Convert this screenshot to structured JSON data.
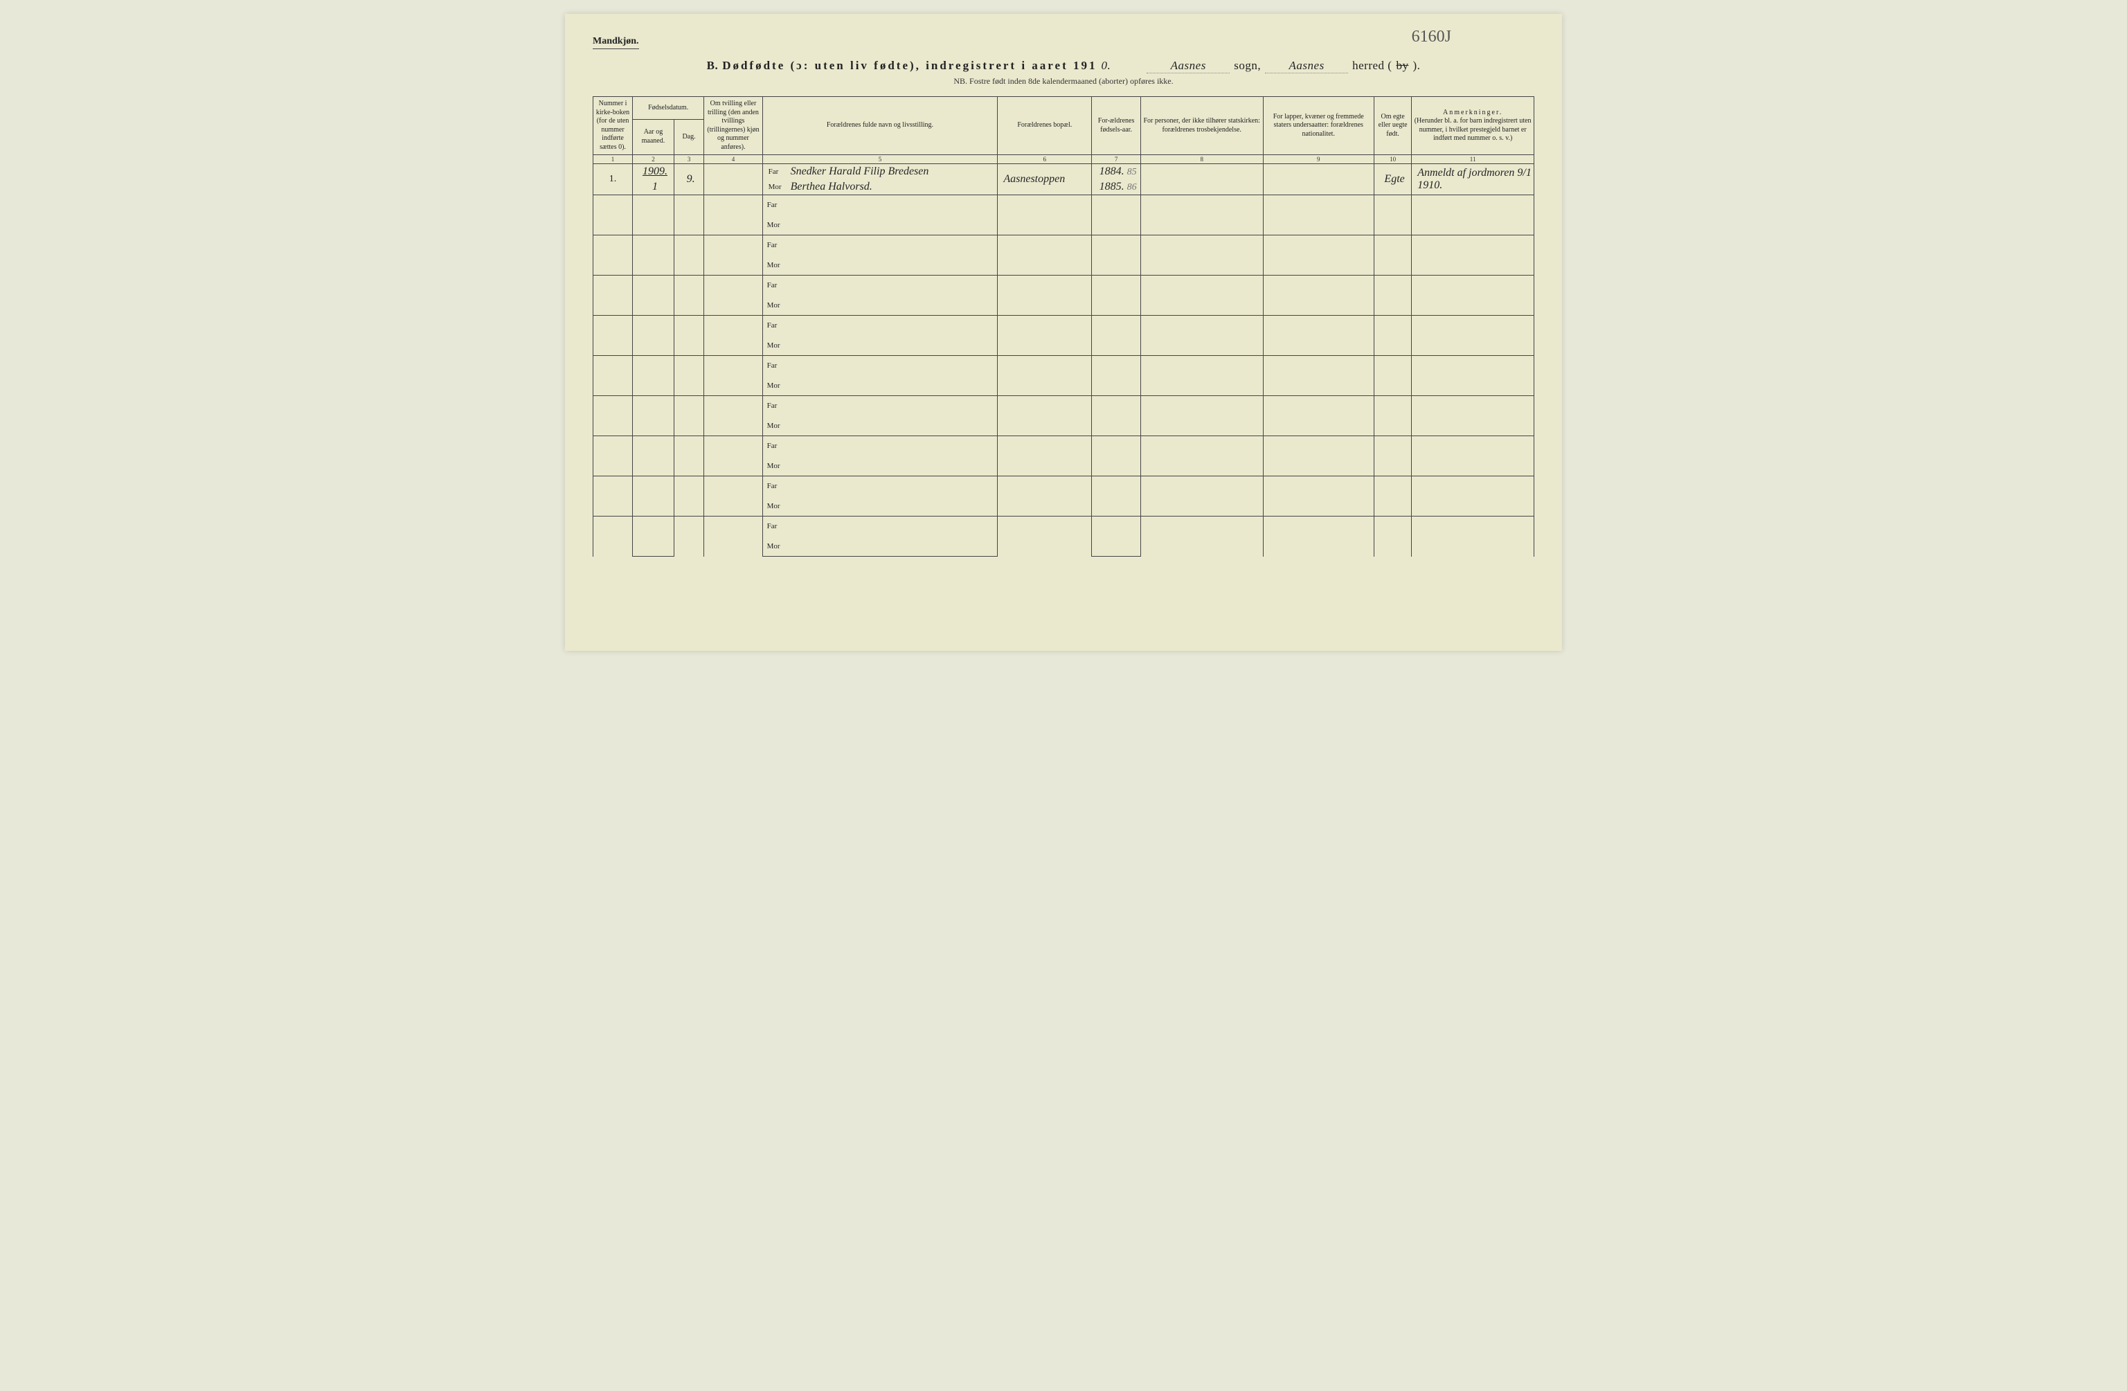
{
  "page": {
    "background_color": "#eae9ce",
    "border_color": "#444444",
    "text_color": "#222222",
    "handwriting_color": "#252525",
    "pencil_color": "#777777"
  },
  "corner_label": "Mandkjøn.",
  "pencil_archive_code": "6160J",
  "title": {
    "prefix": "B.",
    "main": "Dødfødte (ɔ: uten liv fødte), indregistrert i aaret 191",
    "year_suffix_handwritten": "0.",
    "sogn_handwritten": "Aasnes",
    "label_sogn": "sogn,",
    "herred_handwritten": "Aasnes",
    "label_herred_pre": "herred (",
    "label_herred_strike": "by",
    "label_herred_post": ")."
  },
  "sub_note": "NB. Fostre født inden 8de kalendermaaned (aborter) opføres ikke.",
  "columns": {
    "c1": "Nummer i kirke-boken (for de uten nummer indførte sættes 0).",
    "c2_group": "Fødselsdatum.",
    "c2a": "Aar og maaned.",
    "c2b": "Dag.",
    "c4": "Om tvilling eller trilling (den anden tvillings (trillingernes) kjøn og nummer anføres).",
    "c5": "Forældrenes fulde navn og livsstilling.",
    "c6": "Forældrenes bopæl.",
    "c7": "For-ældrenes fødsels-aar.",
    "c8": "For personer, der ikke tilhører statskirken: forældrenes trosbekjendelse.",
    "c9": "For lapper, kvæner og fremmede staters undersaatter: forældrenes nationalitet.",
    "c10": "Om egte eller uegte født.",
    "c11_head": "Anmerkninger.",
    "c11_sub": "(Herunder bl. a. for barn indregistrert uten nummer, i hvilket prestegjeld barnet er indført med nummer o. s. v.)"
  },
  "column_numbers": [
    "1",
    "2",
    "3",
    "4",
    "5",
    "6",
    "7",
    "8",
    "9",
    "10",
    "11"
  ],
  "role_labels": {
    "far": "Far",
    "mor": "Mor"
  },
  "rows": [
    {
      "num": "1.",
      "year_month": "1909.",
      "month_line2": "1",
      "day": "9.",
      "twin": "",
      "far_name": "Snedker Harald Filip Bredesen",
      "mor_name": "Berthea Halvorsd.",
      "residence": "Aasnestoppen",
      "far_birth": "1884.",
      "far_birth_pencil": "85",
      "mor_birth": "1885.",
      "mor_birth_pencil": "86",
      "faith": "",
      "nationality": "",
      "legitimacy": "Egte",
      "remarks": "Anmeldt af jordmoren 9/1 1910."
    }
  ],
  "empty_row_count": 9,
  "column_widths_pct": [
    4.2,
    4.4,
    3.2,
    6.2,
    25.0,
    10.0,
    5.2,
    13.0,
    11.8,
    4.0,
    13.0
  ],
  "font_sizes": {
    "title": 17,
    "header": 10,
    "subnote": 12,
    "hand": 16
  }
}
